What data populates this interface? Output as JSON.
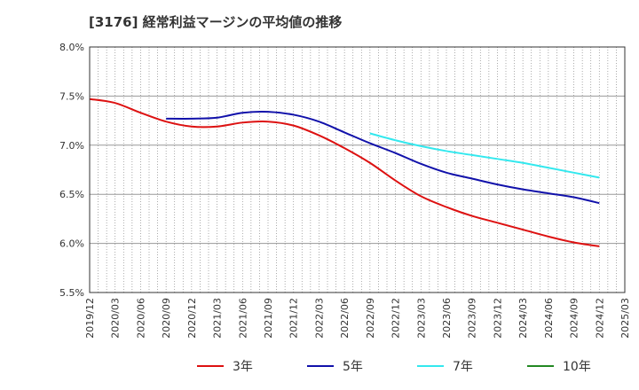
{
  "title": "[3176]  経常利益マージンの平均値の推移",
  "chart_data": {
    "type": "line",
    "title": "[3176]  経常利益マージンの平均値の推移",
    "xlabel": "",
    "ylabel": "",
    "x_ticks": [
      "2019/12",
      "2020/03",
      "2020/06",
      "2020/09",
      "2020/12",
      "2021/03",
      "2021/06",
      "2021/09",
      "2021/12",
      "2022/03",
      "2022/06",
      "2022/09",
      "2022/12",
      "2023/03",
      "2023/06",
      "2023/09",
      "2023/12",
      "2024/03",
      "2024/06",
      "2024/09",
      "2024/12",
      "2025/03"
    ],
    "y_ticks": [
      "5.5%",
      "6.0%",
      "6.5%",
      "7.0%",
      "7.5%",
      "8.0%"
    ],
    "ylim": [
      5.5,
      8.0
    ],
    "grid": true,
    "legend_position": "bottom",
    "series": [
      {
        "name": "3年",
        "color": "#dd1111",
        "x": [
          "2019/12",
          "2020/03",
          "2020/06",
          "2020/09",
          "2020/12",
          "2021/03",
          "2021/06",
          "2021/09",
          "2021/12",
          "2022/03",
          "2022/06",
          "2022/09",
          "2022/12",
          "2023/03",
          "2023/06",
          "2023/09",
          "2023/12",
          "2024/03",
          "2024/06",
          "2024/09",
          "2024/12"
        ],
        "values": [
          7.47,
          7.43,
          7.33,
          7.24,
          7.19,
          7.19,
          7.23,
          7.24,
          7.2,
          7.1,
          6.97,
          6.82,
          6.64,
          6.48,
          6.37,
          6.28,
          6.21,
          6.14,
          6.07,
          6.01,
          5.97
        ]
      },
      {
        "name": "5年",
        "color": "#1111aa",
        "x": [
          "2020/09",
          "2020/12",
          "2021/03",
          "2021/06",
          "2021/09",
          "2021/12",
          "2022/03",
          "2022/06",
          "2022/09",
          "2022/12",
          "2023/03",
          "2023/06",
          "2023/09",
          "2023/12",
          "2024/03",
          "2024/06",
          "2024/09",
          "2024/12"
        ],
        "values": [
          7.27,
          7.27,
          7.28,
          7.33,
          7.34,
          7.31,
          7.24,
          7.13,
          7.02,
          6.92,
          6.81,
          6.72,
          6.66,
          6.6,
          6.55,
          6.51,
          6.47,
          6.41
        ]
      },
      {
        "name": "7年",
        "color": "#33e8ee",
        "x": [
          "2022/09",
          "2022/12",
          "2023/03",
          "2023/06",
          "2023/09",
          "2023/12",
          "2024/03",
          "2024/06",
          "2024/09",
          "2024/12"
        ],
        "values": [
          7.12,
          7.05,
          6.99,
          6.94,
          6.9,
          6.86,
          6.82,
          6.77,
          6.72,
          6.67
        ]
      },
      {
        "name": "10年",
        "color": "#228822",
        "x": [],
        "values": []
      }
    ]
  }
}
